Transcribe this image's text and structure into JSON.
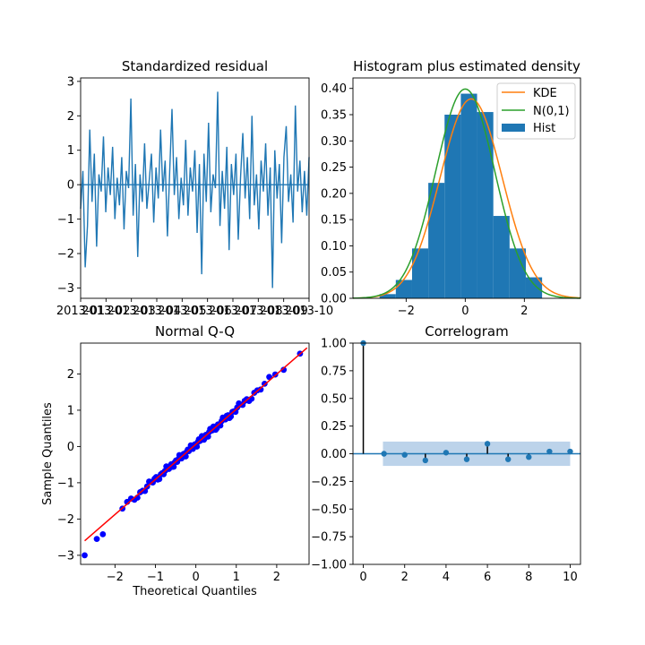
{
  "colors": {
    "series": "#1f77b4",
    "kde": "#ff7f0e",
    "normal": "#2ca02c",
    "qq_points": "#0000ff",
    "qq_line": "#ff0000",
    "conf_band": "#bcd3ea"
  },
  "chart_data": [
    {
      "type": "line",
      "title": "Standardized residual",
      "xlabel": "",
      "ylabel": "",
      "x_tick_labels": [
        "2013-01",
        "2013-02",
        "2013-03",
        "2013-04",
        "2013-05",
        "2013-06",
        "2013-07",
        "2013-08",
        "2013-09",
        "2013-10"
      ],
      "ylim": [
        -3.3,
        3.1
      ],
      "yticks": [
        -3,
        -2,
        -1,
        0,
        1,
        2,
        3
      ],
      "baseline": 0,
      "values": [
        -0.7,
        0.4,
        -2.4,
        -1.2,
        1.6,
        -0.5,
        0.9,
        -1.8,
        0.3,
        -0.2,
        1.4,
        -0.8,
        0.5,
        -0.3,
        1.1,
        -1.0,
        0.2,
        -0.6,
        0.8,
        -1.3,
        0.4,
        -0.1,
        2.5,
        -0.9,
        0.6,
        -2.1,
        0.3,
        -0.5,
        1.2,
        -0.7,
        0.1,
        0.9,
        -1.1,
        0.5,
        -0.4,
        1.6,
        -0.2,
        0.7,
        -1.5,
        0.4,
        2.2,
        -0.3,
        0.8,
        -1.0,
        0.2,
        -0.6,
        1.3,
        -0.9,
        0.5,
        -0.2,
        1.0,
        -1.4,
        0.6,
        -2.6,
        0.9,
        -0.5,
        1.8,
        -0.8,
        0.3,
        -0.1,
        2.7,
        -1.2,
        0.4,
        -0.7,
        1.1,
        -1.9,
        0.6,
        -0.3,
        0.9,
        -1.6,
        0.2,
        1.5,
        -0.4,
        0.8,
        -1.0,
        2.0,
        -0.6,
        0.3,
        -1.3,
        0.7,
        -0.2,
        1.2,
        -0.9,
        0.5,
        -3.0,
        1.0,
        -0.4,
        0.6,
        -1.7,
        0.8,
        1.7,
        -0.5,
        0.3,
        -1.1,
        2.3,
        -0.2,
        0.7,
        -0.8,
        0.4,
        -0.9,
        0.8
      ],
      "y_stride": 0.065
    },
    {
      "type": "bar",
      "title": "Histogram plus estimated density",
      "xlim": [
        -3.8,
        3.9
      ],
      "ylim": [
        0,
        0.42
      ],
      "xticks": [
        -2,
        0,
        2
      ],
      "yticks": [
        0.0,
        0.05,
        0.1,
        0.15,
        0.2,
        0.25,
        0.3,
        0.35,
        0.4
      ],
      "bin_edges": [
        -2.9,
        -2.35,
        -1.8,
        -1.25,
        -0.7,
        -0.15,
        0.4,
        0.95,
        1.5,
        2.05,
        2.6
      ],
      "values": [
        0.008,
        0.035,
        0.095,
        0.22,
        0.35,
        0.39,
        0.355,
        0.157,
        0.095,
        0.04
      ],
      "legend": [
        "KDE",
        "N(0,1)",
        "Hist"
      ],
      "legend_position": "top-right",
      "kde": {
        "mean": 0.2,
        "sd": 1.05,
        "peak": 0.38
      }
    },
    {
      "type": "scatter",
      "title": "Normal Q-Q",
      "xlabel": "Theoretical Quantiles",
      "ylabel": "Sample Quantiles",
      "xlim": [
        -2.85,
        2.8
      ],
      "ylim": [
        -3.25,
        2.85
      ],
      "xticks": [
        -2,
        -1,
        0,
        1,
        2
      ],
      "yticks": [
        -3,
        -2,
        -1,
        0,
        1,
        2
      ],
      "n_points": 101,
      "extreme_points": [
        [
          -2.75,
          -3.0
        ],
        [
          -2.45,
          -2.55
        ],
        [
          -2.3,
          -2.42
        ]
      ],
      "reference_line": [
        [
          -2.75,
          -2.6
        ],
        [
          2.75,
          2.72
        ]
      ]
    },
    {
      "type": "bar",
      "title": "Correlogram",
      "xlim": [
        -0.5,
        10.5
      ],
      "ylim": [
        -1.0,
        1.0
      ],
      "xticks": [
        0,
        2,
        4,
        6,
        8,
        10
      ],
      "yticks": [
        -1.0,
        -0.75,
        -0.5,
        -0.25,
        0.0,
        0.25,
        0.5,
        0.75,
        1.0
      ],
      "lags": [
        0,
        1,
        2,
        3,
        4,
        5,
        6,
        7,
        8,
        9,
        10
      ],
      "values": [
        1.0,
        0.0,
        -0.01,
        -0.06,
        0.01,
        -0.05,
        0.09,
        -0.05,
        -0.03,
        0.02,
        0.02
      ],
      "confidence_band": {
        "from_lag": 1,
        "to_lag": 10,
        "upper": 0.11,
        "lower": -0.11
      }
    }
  ]
}
